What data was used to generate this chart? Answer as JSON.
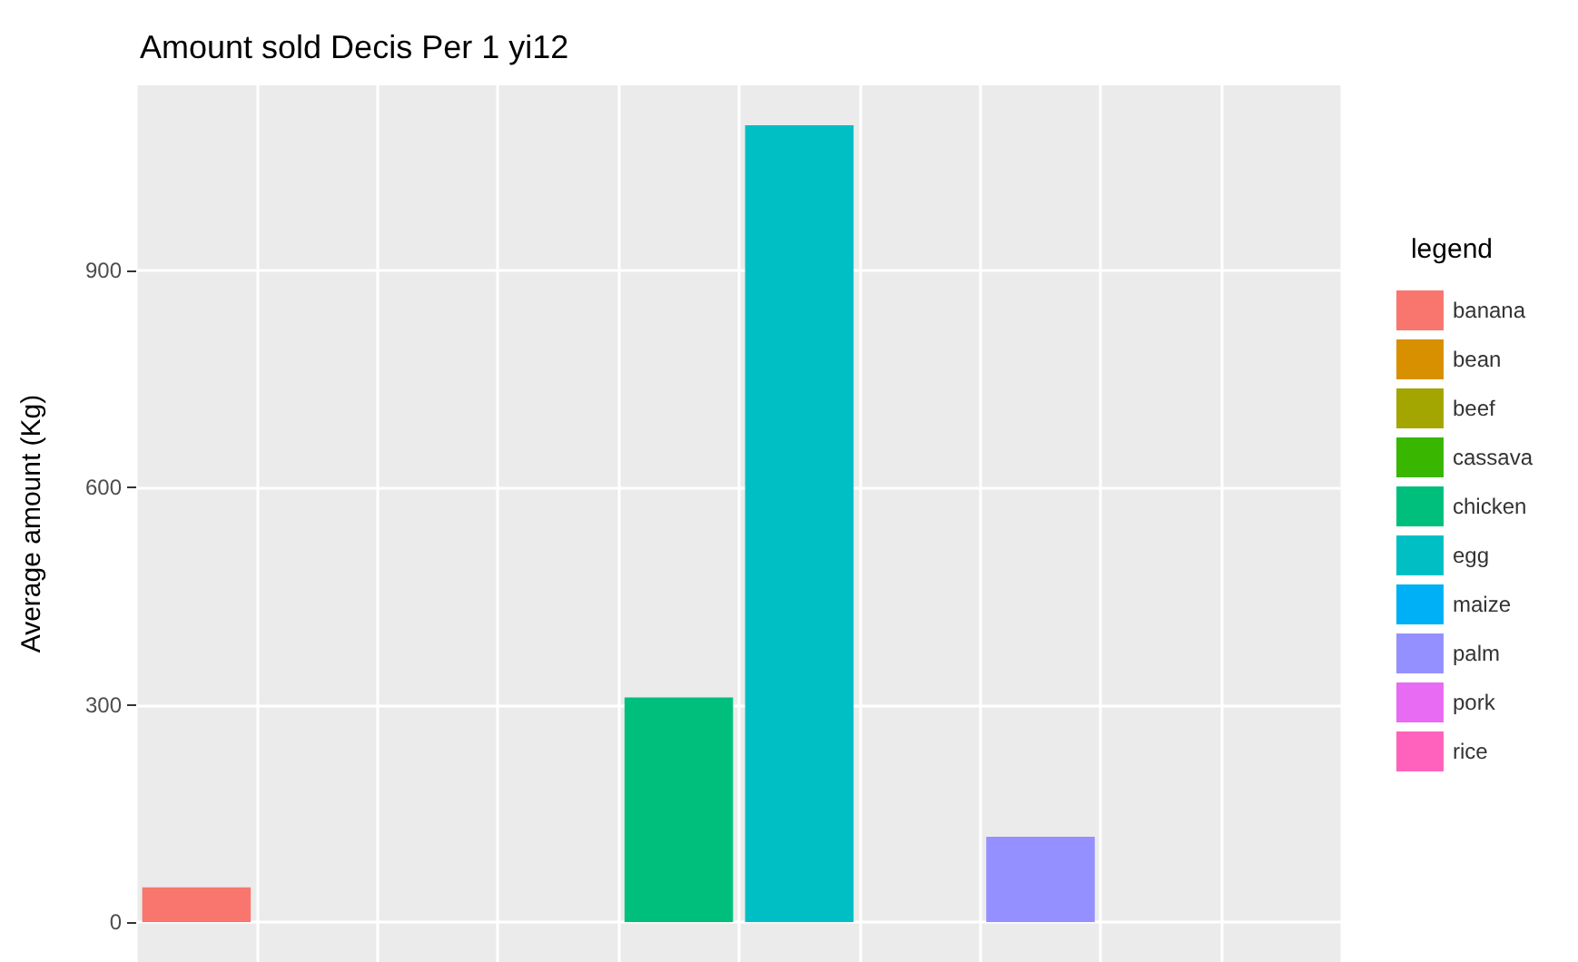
{
  "chart_data": {
    "type": "bar",
    "title": "Amount sold Decis Per 1 yi12",
    "ylabel": "Average amount (Kg)",
    "legend_title": "legend",
    "categories": [
      null,
      null,
      null,
      null,
      null,
      null,
      null,
      null,
      null,
      null
    ],
    "stacked": true,
    "ylim": [
      -55,
      1155
    ],
    "yticks": [
      0,
      300,
      600,
      900
    ],
    "grid": true,
    "legend": "right",
    "tick_labels": "y",
    "series": [
      {
        "name": "banana",
        "color": "#f8766d",
        "values": [
          48,
          null,
          null,
          null,
          null,
          null,
          null,
          null,
          null,
          null
        ]
      },
      {
        "name": "bean",
        "color": "#d89000",
        "values": [
          null,
          null,
          null,
          null,
          null,
          null,
          null,
          null,
          null,
          null
        ]
      },
      {
        "name": "beef",
        "color": "#a3a500",
        "values": [
          null,
          null,
          null,
          null,
          null,
          null,
          null,
          null,
          null,
          null
        ]
      },
      {
        "name": "cassava",
        "color": "#39b600",
        "values": [
          null,
          null,
          null,
          null,
          null,
          null,
          null,
          null,
          null,
          null
        ]
      },
      {
        "name": "chicken",
        "color": "#00bf7d",
        "values": [
          null,
          null,
          null,
          null,
          310,
          null,
          null,
          null,
          null,
          null
        ]
      },
      {
        "name": "egg",
        "color": "#00bfc4",
        "values": [
          null,
          null,
          null,
          null,
          null,
          1100,
          null,
          null,
          null,
          null
        ]
      },
      {
        "name": "maize",
        "color": "#00b0f6",
        "values": [
          null,
          null,
          null,
          null,
          null,
          null,
          null,
          null,
          null,
          null
        ]
      },
      {
        "name": "palm",
        "color": "#9590ff",
        "values": [
          null,
          null,
          null,
          null,
          null,
          null,
          null,
          118,
          null,
          null
        ]
      },
      {
        "name": "pork",
        "color": "#e76bf3",
        "values": [
          null,
          null,
          null,
          null,
          null,
          null,
          null,
          null,
          null,
          null
        ]
      },
      {
        "name": "rice",
        "color": "#ff62bc",
        "values": [
          null,
          null,
          null,
          null,
          null,
          null,
          null,
          null,
          null,
          null
        ]
      }
    ]
  }
}
